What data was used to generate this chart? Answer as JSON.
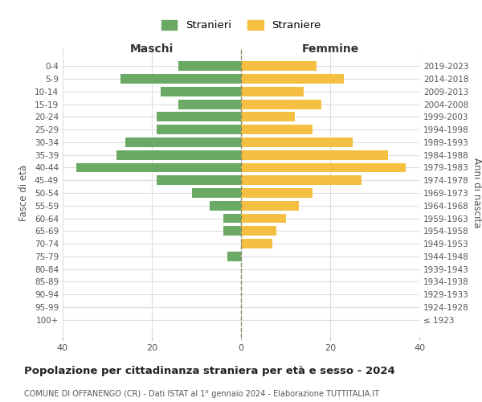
{
  "age_groups": [
    "100+",
    "95-99",
    "90-94",
    "85-89",
    "80-84",
    "75-79",
    "70-74",
    "65-69",
    "60-64",
    "55-59",
    "50-54",
    "45-49",
    "40-44",
    "35-39",
    "30-34",
    "25-29",
    "20-24",
    "15-19",
    "10-14",
    "5-9",
    "0-4"
  ],
  "birth_years": [
    "≤ 1923",
    "1924-1928",
    "1929-1933",
    "1934-1938",
    "1939-1943",
    "1944-1948",
    "1949-1953",
    "1954-1958",
    "1959-1963",
    "1964-1968",
    "1969-1973",
    "1974-1978",
    "1979-1983",
    "1984-1988",
    "1989-1993",
    "1994-1998",
    "1999-2003",
    "2004-2008",
    "2009-2013",
    "2014-2018",
    "2019-2023"
  ],
  "males": [
    0,
    0,
    0,
    0,
    0,
    3,
    0,
    4,
    4,
    7,
    11,
    19,
    37,
    28,
    26,
    19,
    19,
    14,
    18,
    27,
    14
  ],
  "females": [
    0,
    0,
    0,
    0,
    0,
    0,
    7,
    8,
    10,
    13,
    16,
    27,
    37,
    33,
    25,
    16,
    12,
    18,
    14,
    23,
    17
  ],
  "male_color": "#6aaa64",
  "female_color": "#f5bf42",
  "background_color": "#ffffff",
  "grid_color": "#dddddd",
  "title": "Popolazione per cittadinanza straniera per età e sesso - 2024",
  "subtitle": "COMUNE DI OFFANENGO (CR) - Dati ISTAT al 1° gennaio 2024 - Elaborazione TUTTITALIA.IT",
  "xlabel_left": "Maschi",
  "xlabel_right": "Femmine",
  "ylabel_left": "Fasce di età",
  "ylabel_right": "Anni di nascita",
  "legend_male": "Stranieri",
  "legend_female": "Straniere",
  "xlim": 40,
  "bar_height": 0.75
}
